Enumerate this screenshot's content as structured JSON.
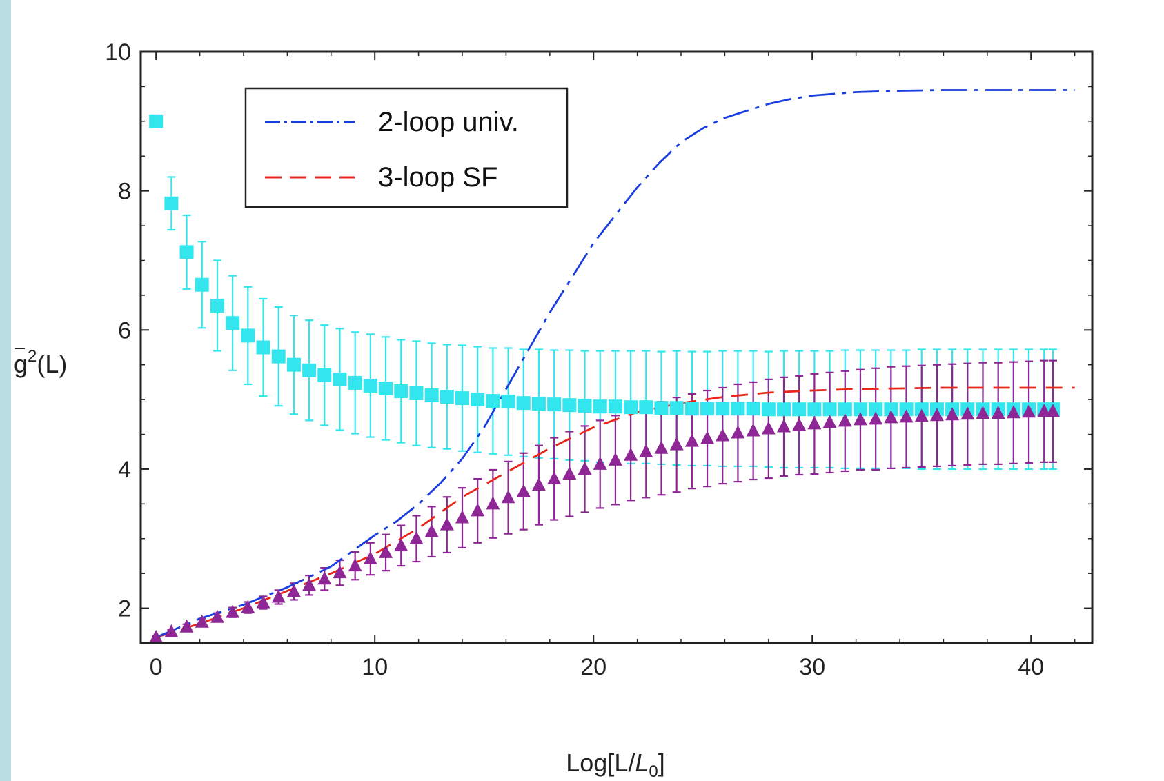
{
  "chart_data": {
    "type": "scatter",
    "title": "",
    "xlabel_main": "Log[L/",
    "xlabel_sym": "L",
    "xlabel_sub": "0",
    "xlabel_end": "]",
    "ylabel_main": "g",
    "ylabel_sup": "2",
    "ylabel_end": "(L)",
    "xlim": [
      -0.7,
      42.8
    ],
    "ylim": [
      1.5,
      10.0
    ],
    "x_ticks": [
      0,
      10,
      20,
      30,
      40
    ],
    "x_tick_labels": [
      "0",
      "10",
      "20",
      "30",
      "40"
    ],
    "y_ticks": [
      2,
      4,
      6,
      8,
      10
    ],
    "y_tick_labels": [
      "2",
      "4",
      "6",
      "8",
      "10"
    ],
    "grid": false,
    "legend_position": "top-left",
    "legend": [
      {
        "label": "2-loop univ.",
        "color": "#1a3de0",
        "style": "dash-dot"
      },
      {
        "label": "3-loop SF",
        "color": "#e8261a",
        "style": "dashed"
      }
    ],
    "series": [
      {
        "name": "2-loop univ.",
        "kind": "line",
        "color": "#1a3de0",
        "x": [
          0,
          2,
          4,
          6,
          8,
          10,
          11,
          12,
          13,
          14,
          15,
          16,
          17,
          18,
          19,
          20,
          21,
          22,
          23,
          24,
          25,
          26,
          27,
          28,
          29,
          30,
          32,
          34,
          36,
          38,
          40,
          42
        ],
        "y": [
          1.58,
          1.85,
          2.05,
          2.3,
          2.6,
          3.05,
          3.25,
          3.5,
          3.8,
          4.15,
          4.6,
          5.15,
          5.7,
          6.25,
          6.75,
          7.25,
          7.65,
          8.05,
          8.4,
          8.7,
          8.9,
          9.05,
          9.15,
          9.25,
          9.32,
          9.37,
          9.42,
          9.44,
          9.45,
          9.45,
          9.45,
          9.45
        ]
      },
      {
        "name": "3-loop SF",
        "kind": "line",
        "color": "#e8261a",
        "x": [
          0,
          2,
          4,
          6,
          8,
          10,
          12,
          14,
          16,
          18,
          20,
          22,
          24,
          26,
          28,
          30,
          32,
          34,
          36,
          38,
          40,
          42
        ],
        "y": [
          1.58,
          1.78,
          2.0,
          2.25,
          2.5,
          2.78,
          3.15,
          3.6,
          3.95,
          4.3,
          4.6,
          4.82,
          4.95,
          5.04,
          5.1,
          5.13,
          5.15,
          5.16,
          5.17,
          5.17,
          5.17,
          5.17
        ]
      },
      {
        "name": "",
        "kind": "squares-with-error-bars",
        "color": "#33e6ee",
        "x": [
          0,
          0.7,
          1.4,
          2.1,
          2.8,
          3.5,
          4.2,
          4.9,
          5.6,
          6.3,
          7.0,
          7.7,
          8.4,
          9.1,
          9.8,
          10.5,
          11.2,
          11.9,
          12.6,
          13.3,
          14.0,
          14.7,
          15.4,
          16.1,
          16.8,
          17.5,
          18.2,
          18.9,
          19.6,
          20.3,
          21.0,
          21.7,
          22.4,
          23.1,
          23.8,
          24.5,
          25.2,
          25.9,
          26.6,
          27.3,
          28.0,
          28.7,
          29.4,
          30.1,
          30.8,
          31.5,
          32.2,
          32.9,
          33.6,
          34.3,
          35.0,
          35.7,
          36.4,
          37.1,
          37.8,
          38.5,
          39.2,
          39.9,
          40.6,
          41.0
        ],
        "y": [
          9.0,
          7.82,
          7.12,
          6.65,
          6.35,
          6.1,
          5.92,
          5.75,
          5.62,
          5.5,
          5.42,
          5.35,
          5.29,
          5.24,
          5.2,
          5.16,
          5.12,
          5.09,
          5.06,
          5.04,
          5.02,
          5.0,
          4.98,
          4.97,
          4.95,
          4.94,
          4.93,
          4.92,
          4.91,
          4.9,
          4.9,
          4.89,
          4.89,
          4.88,
          4.88,
          4.87,
          4.87,
          4.87,
          4.87,
          4.87,
          4.86,
          4.86,
          4.86,
          4.86,
          4.86,
          4.86,
          4.86,
          4.86,
          4.86,
          4.86,
          4.86,
          4.86,
          4.86,
          4.86,
          4.86,
          4.86,
          4.86,
          4.86,
          4.86,
          4.86
        ],
        "err": [
          0,
          0.38,
          0.53,
          0.62,
          0.65,
          0.68,
          0.7,
          0.7,
          0.71,
          0.71,
          0.72,
          0.72,
          0.73,
          0.73,
          0.74,
          0.74,
          0.74,
          0.75,
          0.75,
          0.75,
          0.76,
          0.76,
          0.76,
          0.77,
          0.77,
          0.78,
          0.78,
          0.79,
          0.79,
          0.8,
          0.8,
          0.81,
          0.81,
          0.81,
          0.82,
          0.82,
          0.82,
          0.83,
          0.83,
          0.83,
          0.83,
          0.84,
          0.84,
          0.84,
          0.84,
          0.85,
          0.85,
          0.85,
          0.85,
          0.85,
          0.86,
          0.86,
          0.86,
          0.86,
          0.86,
          0.86,
          0.86,
          0.86,
          0.86,
          0.86
        ]
      },
      {
        "name": "",
        "kind": "triangles-with-error-bars",
        "color": "#8e2795",
        "x": [
          0,
          0.7,
          1.4,
          2.1,
          2.8,
          3.5,
          4.2,
          4.9,
          5.6,
          6.3,
          7.0,
          7.7,
          8.4,
          9.1,
          9.8,
          10.5,
          11.2,
          11.9,
          12.6,
          13.3,
          14.0,
          14.7,
          15.4,
          16.1,
          16.8,
          17.5,
          18.2,
          18.9,
          19.6,
          20.3,
          21.0,
          21.7,
          22.4,
          23.1,
          23.8,
          24.5,
          25.2,
          25.9,
          26.6,
          27.3,
          28.0,
          28.7,
          29.4,
          30.1,
          30.8,
          31.5,
          32.2,
          32.9,
          33.6,
          34.3,
          35.0,
          35.7,
          36.4,
          37.1,
          37.8,
          38.5,
          39.2,
          39.9,
          40.6,
          41.0
        ],
        "y": [
          1.58,
          1.66,
          1.73,
          1.8,
          1.87,
          1.94,
          2.01,
          2.08,
          2.16,
          2.24,
          2.33,
          2.42,
          2.51,
          2.61,
          2.71,
          2.8,
          2.9,
          3.0,
          3.1,
          3.2,
          3.3,
          3.4,
          3.5,
          3.59,
          3.68,
          3.77,
          3.86,
          3.93,
          4.0,
          4.07,
          4.13,
          4.2,
          4.25,
          4.3,
          4.35,
          4.4,
          4.44,
          4.48,
          4.52,
          4.55,
          4.58,
          4.61,
          4.63,
          4.65,
          4.67,
          4.69,
          4.71,
          4.72,
          4.74,
          4.75,
          4.76,
          4.77,
          4.78,
          4.79,
          4.8,
          4.8,
          4.81,
          4.82,
          4.83,
          4.83
        ],
        "err": [
          0.02,
          0.03,
          0.04,
          0.05,
          0.06,
          0.07,
          0.08,
          0.09,
          0.1,
          0.12,
          0.14,
          0.16,
          0.18,
          0.2,
          0.23,
          0.26,
          0.29,
          0.33,
          0.36,
          0.4,
          0.43,
          0.46,
          0.49,
          0.52,
          0.55,
          0.57,
          0.59,
          0.61,
          0.62,
          0.63,
          0.64,
          0.65,
          0.66,
          0.67,
          0.68,
          0.68,
          0.69,
          0.69,
          0.7,
          0.7,
          0.71,
          0.71,
          0.71,
          0.72,
          0.72,
          0.72,
          0.72,
          0.73,
          0.73,
          0.73,
          0.73,
          0.73,
          0.73,
          0.73,
          0.73,
          0.73,
          0.73,
          0.73,
          0.73,
          0.73
        ]
      }
    ]
  }
}
